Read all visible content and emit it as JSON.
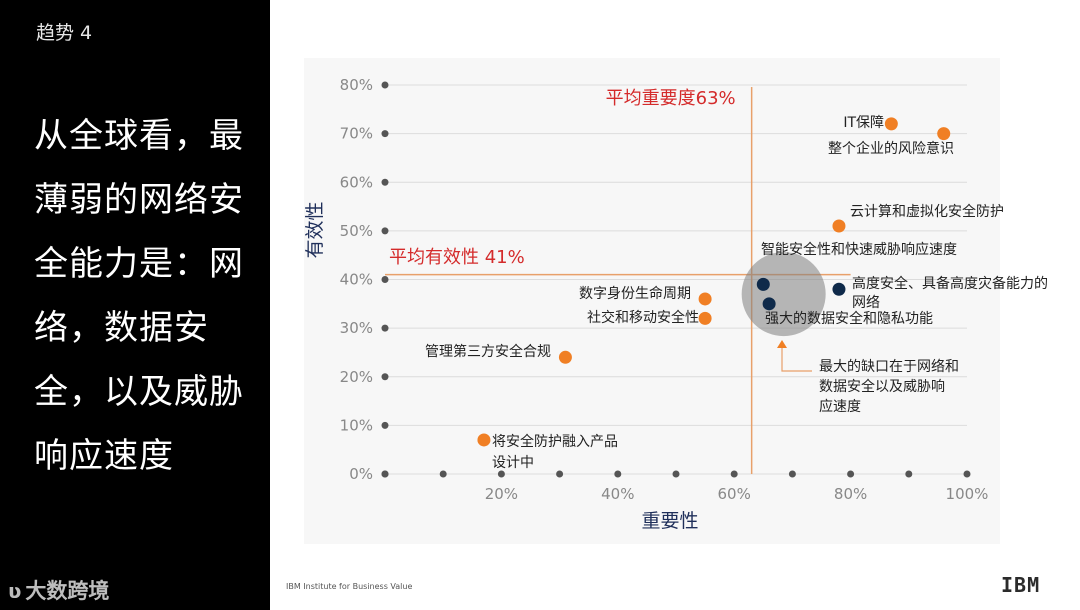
{
  "slide": {
    "trend_label": "趋势 4",
    "headline": "从全球看，最薄弱的网络安全能力是：网络，数据安全，以及威胁响应速度",
    "watermark": "大数跨境",
    "source": "IBM Institute for Business Value",
    "brand": "IBM"
  },
  "chart_data": {
    "type": "scatter",
    "xlabel": "重要性",
    "ylabel": "有效性",
    "xlim": [
      0,
      100
    ],
    "ylim": [
      0,
      80
    ],
    "x_ticks": [
      "20%",
      "40%",
      "60%",
      "80%",
      "100%"
    ],
    "y_ticks": [
      "0%",
      "10%",
      "20%",
      "30%",
      "40%",
      "50%",
      "60%",
      "70%",
      "80%"
    ],
    "grid": true,
    "avg_importance": {
      "value": 63,
      "label": "平均重要度63%"
    },
    "avg_effectiveness": {
      "value": 41,
      "label": "平均有效性 41%"
    },
    "points": [
      {
        "label": "IT保障",
        "x": 87,
        "y": 72,
        "color": "#f07f24"
      },
      {
        "label": "整个企业的风险意识",
        "x": 96,
        "y": 70,
        "color": "#f07f24"
      },
      {
        "label": "云计算和虚拟化安全防护",
        "x": 78,
        "y": 51,
        "color": "#f07f24"
      },
      {
        "label": "智能安全性和快速威胁响应速度",
        "x": 65,
        "y": 39,
        "color": "#0f2a4a"
      },
      {
        "label": "高度安全、具备高度灾备能力的网络",
        "x": 78,
        "y": 38,
        "color": "#0f2a4a"
      },
      {
        "label": "强大的数据安全和隐私功能",
        "x": 66,
        "y": 35,
        "color": "#0f2a4a"
      },
      {
        "label": "数字身份生命周期",
        "x": 55,
        "y": 36,
        "color": "#f07f24"
      },
      {
        "label": "社交和移动安全性",
        "x": 55,
        "y": 32,
        "color": "#f07f24"
      },
      {
        "label": "管理第三方安全合规",
        "x": 31,
        "y": 24,
        "color": "#f07f24"
      },
      {
        "label": "将安全防护融入产品设计中",
        "x": 17,
        "y": 7,
        "color": "#f07f24"
      }
    ],
    "annotation": "最大的缺口在于网络和数据安全以及威胁响应速度"
  }
}
